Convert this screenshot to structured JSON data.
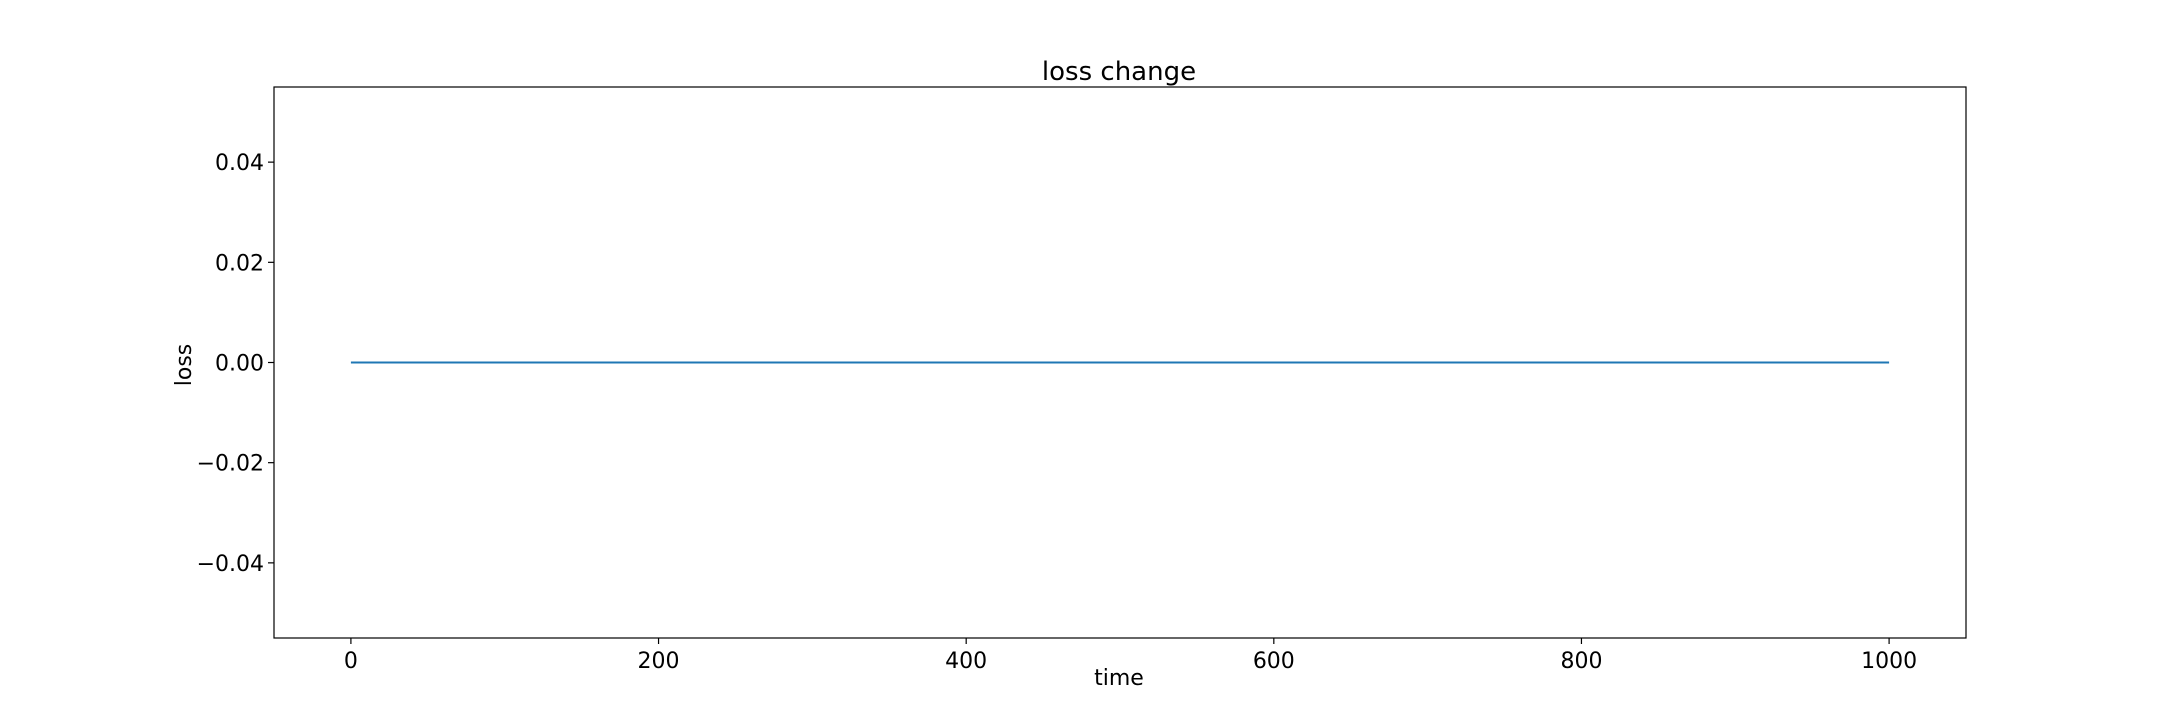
{
  "chart_data": {
    "type": "line",
    "title": "loss change",
    "xlabel": "time",
    "ylabel": "loss",
    "xlim": [
      -50,
      1050
    ],
    "ylim": [
      -0.055,
      0.055
    ],
    "xticks": [
      0,
      200,
      400,
      600,
      800,
      1000
    ],
    "xtick_labels": [
      "0",
      "200",
      "400",
      "600",
      "800",
      "1000"
    ],
    "yticks": [
      -0.04,
      -0.02,
      0.0,
      0.02,
      0.04
    ],
    "ytick_labels": [
      "−0.04",
      "−0.02",
      "0.00",
      "0.02",
      "0.04"
    ],
    "grid": false,
    "legend": "none",
    "series": [
      {
        "color": "#1f77b4",
        "x": [
          0,
          1000
        ],
        "y": [
          0,
          0
        ]
      }
    ]
  }
}
